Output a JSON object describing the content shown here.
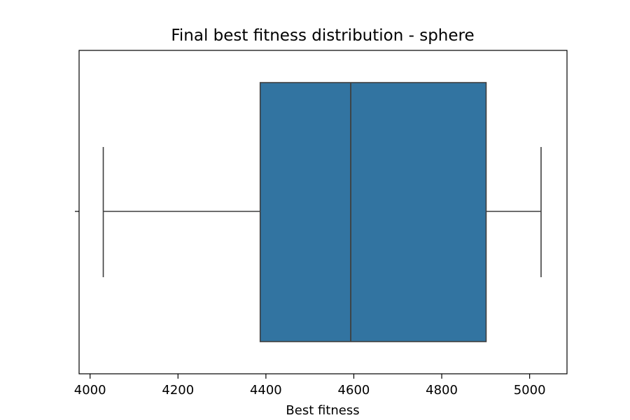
{
  "chart_data": {
    "type": "box",
    "title": "Final best fitness distribution - sphere",
    "xlabel": "Best fitness",
    "ylabel": "",
    "orientation": "horizontal",
    "xlim": [
      3975,
      5085
    ],
    "xticks": [
      4000,
      4200,
      4400,
      4600,
      4800,
      5000
    ],
    "xtick_labels": [
      "4000",
      "4200",
      "4400",
      "4600",
      "4800",
      "5000"
    ],
    "grid": false,
    "series": [
      {
        "whisker_low": 4030,
        "q1": 4387,
        "median": 4593,
        "q3": 4901,
        "whisker_high": 5026,
        "color": "#3274a1"
      }
    ]
  }
}
